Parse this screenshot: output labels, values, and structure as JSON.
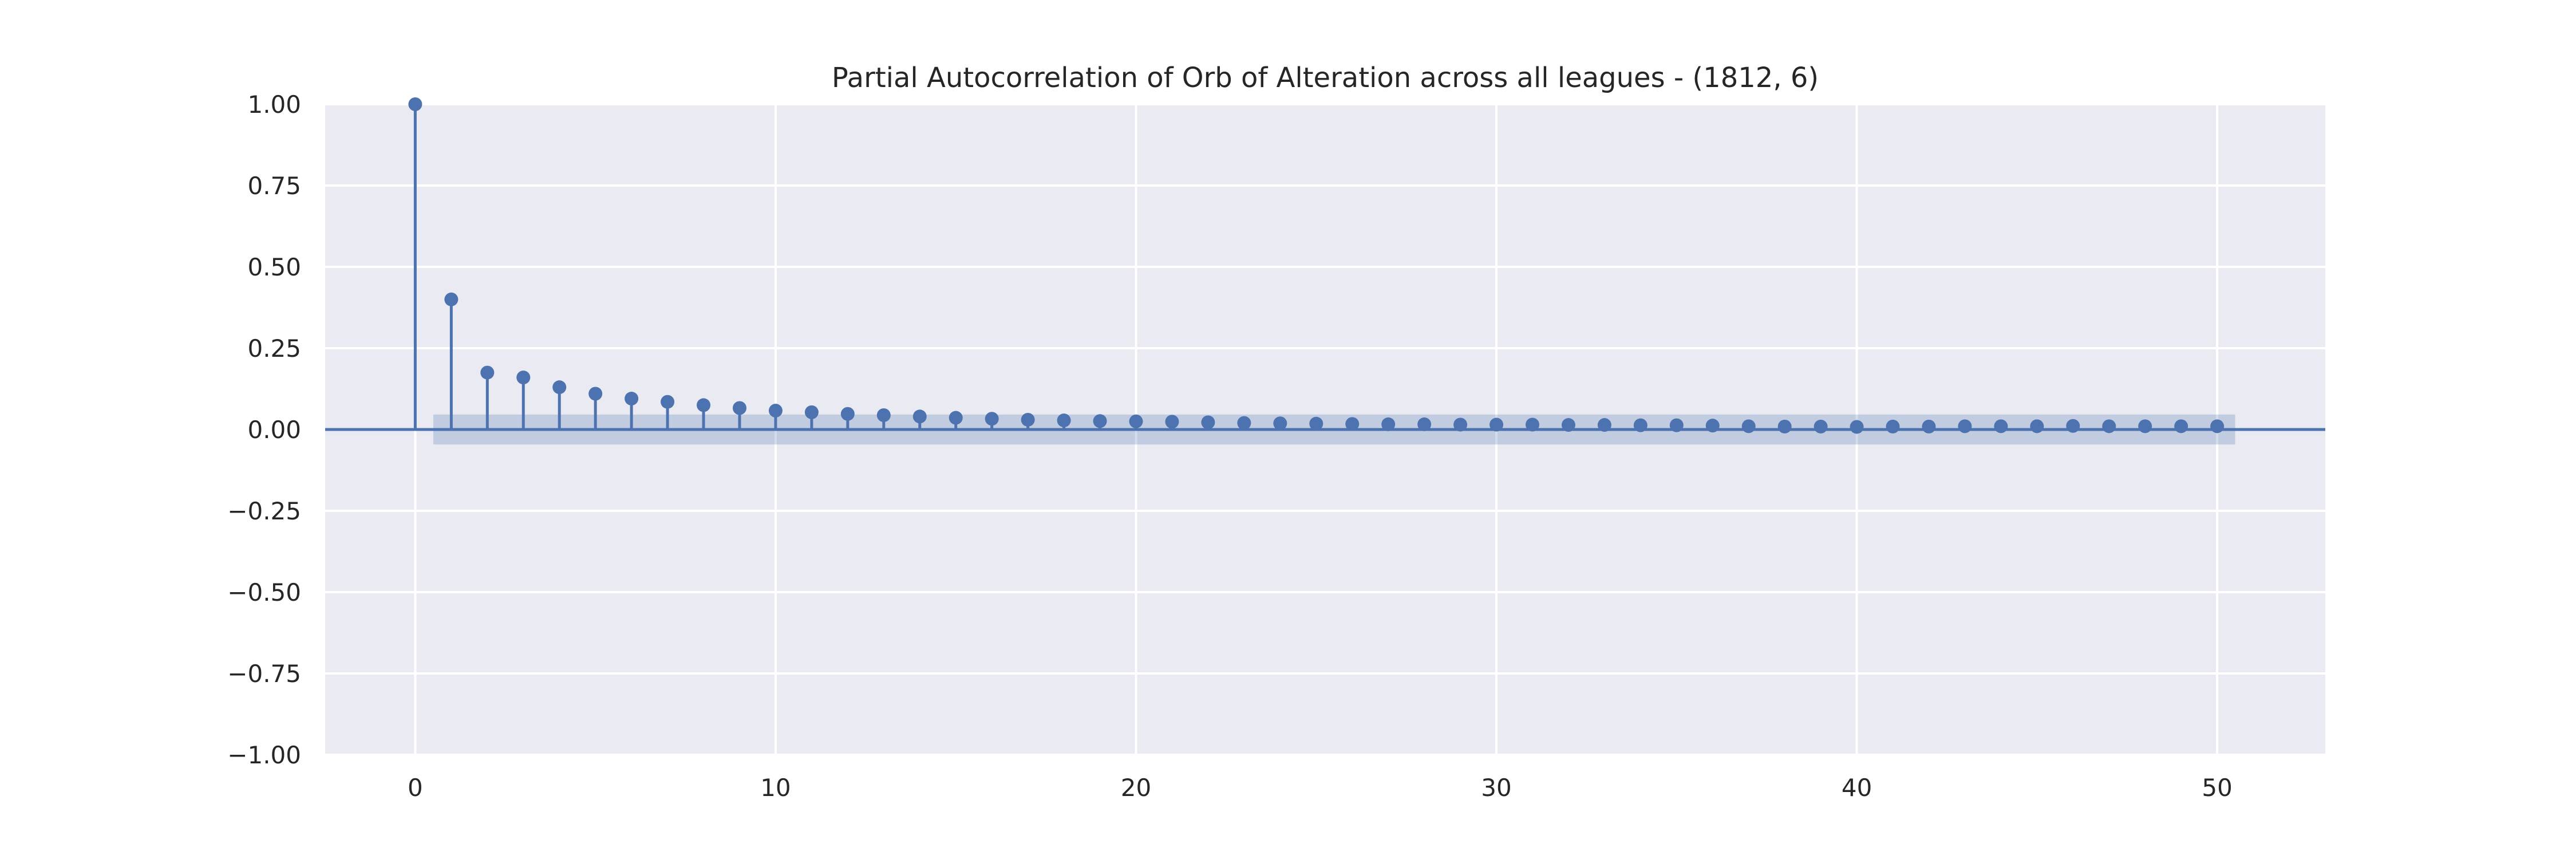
{
  "chart_data": {
    "type": "stem",
    "title": "Partial Autocorrelation of Orb of Alteration across all leagues - (1812, 6)",
    "xlabel": "",
    "ylabel": "",
    "xlim": [
      -2.5,
      53
    ],
    "ylim": [
      -1.0,
      1.0
    ],
    "x_ticks": [
      0,
      10,
      20,
      30,
      40,
      50
    ],
    "x_tick_labels": [
      "0",
      "10",
      "20",
      "30",
      "40",
      "50"
    ],
    "y_ticks": [
      1.0,
      0.75,
      0.5,
      0.25,
      0.0,
      -0.25,
      -0.5,
      -0.75,
      -1.0
    ],
    "y_tick_labels": [
      "1.00",
      "0.75",
      "0.50",
      "0.25",
      "0.00",
      "−0.25",
      "−0.50",
      "−0.75",
      "−1.00"
    ],
    "grid": true,
    "background": "#eaeaf2",
    "grid_color": "#ffffff",
    "series_color": "#4c72b0",
    "band_color": "#4c72b0",
    "lags": [
      0,
      1,
      2,
      3,
      4,
      5,
      6,
      7,
      8,
      9,
      10,
      11,
      12,
      13,
      14,
      15,
      16,
      17,
      18,
      19,
      20,
      21,
      22,
      23,
      24,
      25,
      26,
      27,
      28,
      29,
      30,
      31,
      32,
      33,
      34,
      35,
      36,
      37,
      38,
      39,
      40,
      41,
      42,
      43,
      44,
      45,
      46,
      47,
      48,
      49,
      50
    ],
    "values": [
      1.0,
      0.4,
      0.175,
      0.16,
      0.13,
      0.11,
      0.095,
      0.085,
      0.075,
      0.066,
      0.058,
      0.053,
      0.048,
      0.044,
      0.04,
      0.036,
      0.033,
      0.03,
      0.028,
      0.026,
      0.025,
      0.024,
      0.022,
      0.02,
      0.019,
      0.018,
      0.017,
      0.016,
      0.016,
      0.015,
      0.015,
      0.015,
      0.014,
      0.014,
      0.013,
      0.013,
      0.012,
      0.01,
      0.009,
      0.009,
      0.008,
      0.009,
      0.009,
      0.01,
      0.01,
      0.01,
      0.011,
      0.01,
      0.01,
      0.01,
      0.01
    ],
    "confidence_band": {
      "x_range": [
        0.5,
        50.5
      ],
      "lower": -0.046,
      "upper": 0.046
    }
  }
}
